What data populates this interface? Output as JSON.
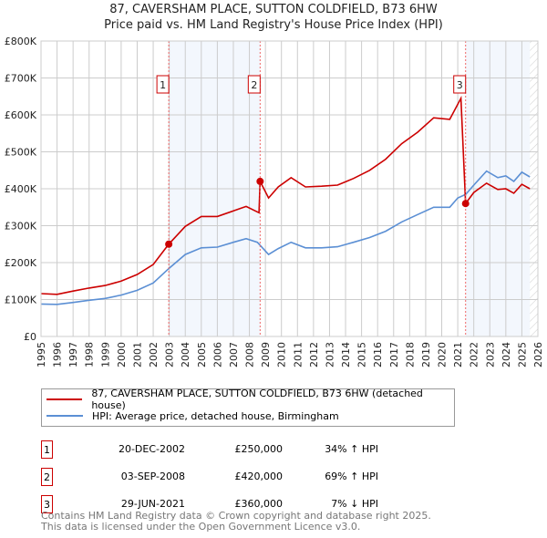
{
  "chart_data": {
    "type": "line",
    "title": "87, CAVERSHAM PLACE, SUTTON COLDFIELD, B73 6HW",
    "subtitle": "Price paid vs. HM Land Registry's House Price Index (HPI)",
    "xlim": [
      1995,
      2026
    ],
    "ylim": [
      0,
      800000
    ],
    "x_ticks": [
      "1995",
      "1996",
      "1997",
      "1998",
      "1999",
      "2000",
      "2001",
      "2002",
      "2003",
      "2004",
      "2005",
      "2006",
      "2007",
      "2008",
      "2009",
      "2010",
      "2011",
      "2012",
      "2013",
      "2014",
      "2015",
      "2016",
      "2017",
      "2018",
      "2019",
      "2020",
      "2021",
      "2022",
      "2023",
      "2024",
      "2025",
      "2026"
    ],
    "y_ticks": [
      {
        "v": 0,
        "label": "£0"
      },
      {
        "v": 100000,
        "label": "£100K"
      },
      {
        "v": 200000,
        "label": "£200K"
      },
      {
        "v": 300000,
        "label": "£300K"
      },
      {
        "v": 400000,
        "label": "£400K"
      },
      {
        "v": 500000,
        "label": "£500K"
      },
      {
        "v": 600000,
        "label": "£600K"
      },
      {
        "v": 700000,
        "label": "£700K"
      },
      {
        "v": 800000,
        "label": "£800K"
      }
    ],
    "grid": true,
    "series": [
      {
        "name": "87, CAVERSHAM PLACE, SUTTON COLDFIELD, B73 6HW (detached house)",
        "color": "#cc0000",
        "x": [
          1995,
          1996,
          1997,
          1998,
          1999,
          2000,
          2001,
          2002,
          2002.97,
          2004,
          2005,
          2006,
          2007,
          2007.8,
          2008.6,
          2008.67,
          2009.2,
          2009.8,
          2010.6,
          2011.5,
          2012.5,
          2013.5,
          2014.5,
          2015.5,
          2016.5,
          2017.5,
          2018.5,
          2019.5,
          2020.5,
          2021.2,
          2021.49,
          2022,
          2022.8,
          2023.5,
          2024,
          2024.5,
          2025,
          2025.5
        ],
        "values": [
          116000,
          114000,
          123000,
          131000,
          138000,
          150000,
          168000,
          195000,
          250000,
          298000,
          325000,
          325000,
          340000,
          352000,
          335000,
          420000,
          375000,
          405000,
          430000,
          405000,
          407000,
          410000,
          428000,
          450000,
          480000,
          522000,
          553000,
          592000,
          588000,
          645000,
          360000,
          390000,
          415000,
          398000,
          400000,
          388000,
          412000,
          400000
        ]
      },
      {
        "name": "HPI: Average price, detached house, Birmingham",
        "color": "#5b8fd4",
        "x": [
          1995,
          1996,
          1997,
          1998,
          1999,
          2000,
          2001,
          2002,
          2003,
          2004,
          2005,
          2006,
          2007,
          2007.8,
          2008.5,
          2009.2,
          2009.8,
          2010.6,
          2011.5,
          2012.5,
          2013.5,
          2014.5,
          2015.5,
          2016.5,
          2017.5,
          2018.5,
          2019.5,
          2020.5,
          2021,
          2021.5,
          2022,
          2022.8,
          2023.5,
          2024,
          2024.5,
          2025,
          2025.5
        ],
        "values": [
          88000,
          87000,
          92000,
          98000,
          103000,
          112000,
          125000,
          145000,
          185000,
          222000,
          240000,
          242000,
          255000,
          265000,
          255000,
          222000,
          238000,
          255000,
          240000,
          240000,
          243000,
          255000,
          268000,
          285000,
          310000,
          330000,
          350000,
          350000,
          375000,
          385000,
          410000,
          448000,
          430000,
          435000,
          420000,
          445000,
          432000
        ]
      }
    ],
    "sales": [
      {
        "num": "1",
        "x": 2002.97,
        "value": 250000,
        "date": "20-DEC-2002",
        "price": "£250,000",
        "hpi": "34% ↑ HPI"
      },
      {
        "num": "2",
        "x": 2008.67,
        "value": 420000,
        "date": "03-SEP-2008",
        "price": "£420,000",
        "hpi": "69% ↑ HPI"
      },
      {
        "num": "3",
        "x": 2021.49,
        "value": 360000,
        "date": "29-JUN-2021",
        "price": "£360,000",
        "hpi": "7% ↓ HPI"
      }
    ],
    "shaded_ranges": [
      [
        2002.97,
        2008.67
      ],
      [
        2021.49,
        2025.5
      ]
    ],
    "hatched_from": 2025.5,
    "legend_placement": "below"
  },
  "footer": [
    "Contains HM Land Registry data © Crown copyright and database right 2025.",
    "This data is licensed under the Open Government Licence v3.0."
  ]
}
